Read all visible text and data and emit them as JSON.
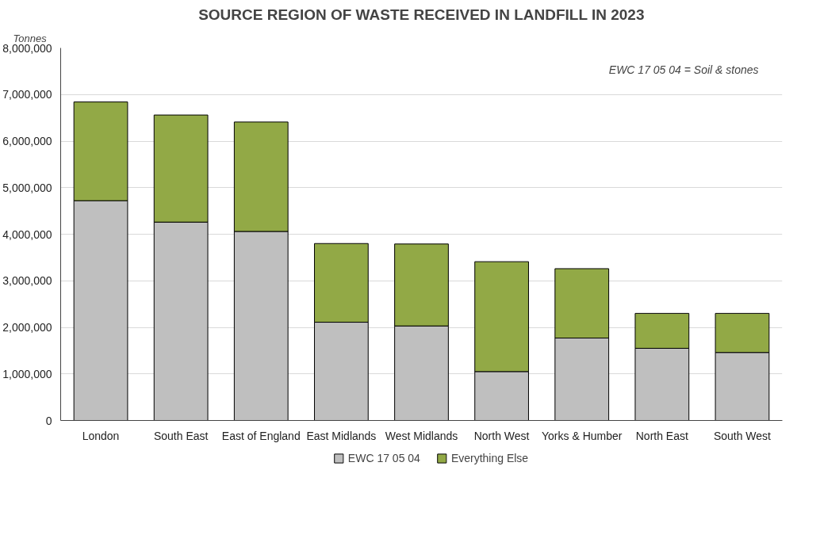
{
  "chart_data": {
    "type": "bar",
    "title": "SOURCE REGION OF WASTE RECEIVED IN LANDFILL IN 2023",
    "ylabel": "Tonnes",
    "annotations": [
      "EWC 17 05 04 = Soil & stones"
    ],
    "categories": [
      "London",
      "South East",
      "East of England",
      "East Midlands",
      "West Midlands",
      "North West",
      "Yorks & Humber",
      "North East",
      "South West"
    ],
    "stacked": true,
    "series": [
      {
        "name": "EWC 17 05 04",
        "color": "#bfbfbf",
        "values": [
          4720000,
          4260000,
          4060000,
          2110000,
          2030000,
          1050000,
          1770000,
          1550000,
          1460000
        ]
      },
      {
        "name": "Everything Else",
        "color": "#92a946",
        "values": [
          2120000,
          2300000,
          2350000,
          1690000,
          1760000,
          2360000,
          1490000,
          750000,
          840000
        ]
      }
    ],
    "ylim": [
      0,
      8000000
    ],
    "yticks": [
      {
        "value": 0,
        "label": "0"
      },
      {
        "value": 1000000,
        "label": "1,000,000"
      },
      {
        "value": 2000000,
        "label": "2,000,000"
      },
      {
        "value": 3000000,
        "label": "3,000,000"
      },
      {
        "value": 4000000,
        "label": "4,000,000"
      },
      {
        "value": 5000000,
        "label": "5,000,000"
      },
      {
        "value": 6000000,
        "label": "6,000,000"
      },
      {
        "value": 7000000,
        "label": "7,000,000"
      },
      {
        "value": 8000000,
        "label": "8,000,000"
      }
    ],
    "grid": "y",
    "legend": "bottom"
  }
}
